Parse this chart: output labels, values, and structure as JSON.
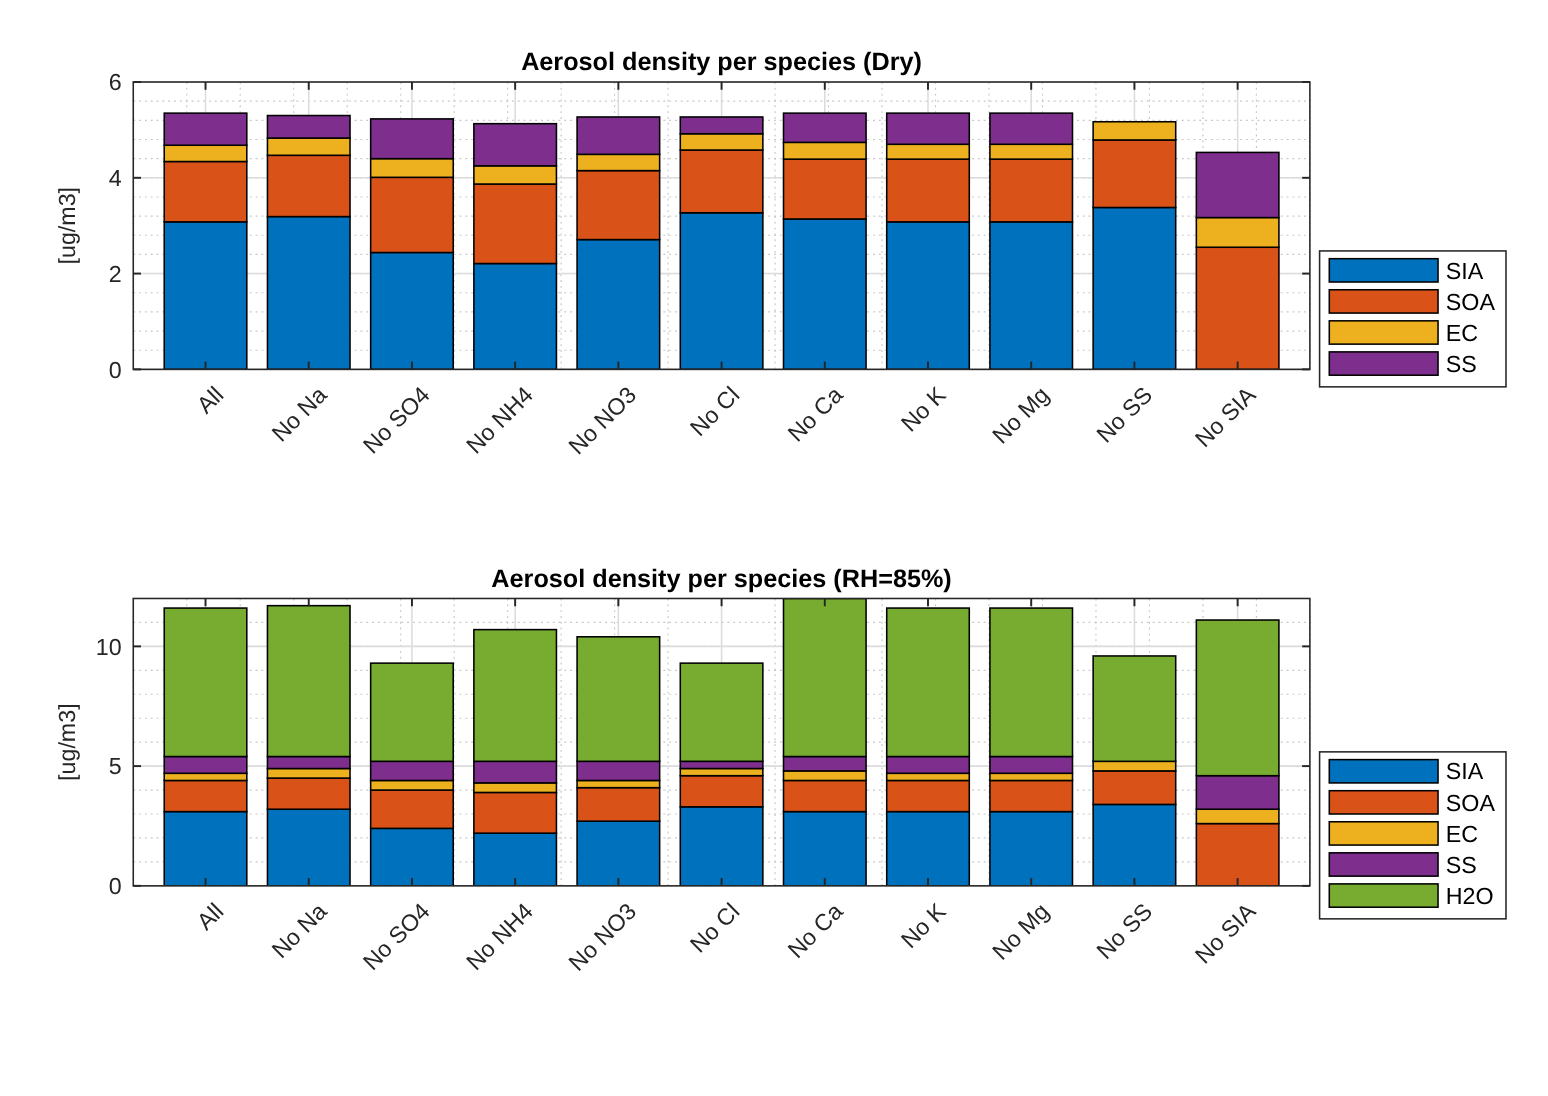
{
  "chart_data": [
    {
      "type": "bar",
      "title": "Aerosol density per species (Dry)",
      "ylabel": "[ug/m3]",
      "stacked": true,
      "grid": true,
      "legend": "right",
      "ylim": [
        0,
        6
      ],
      "yticks": [
        0,
        2,
        4,
        6
      ],
      "categories": [
        "All",
        "No Na",
        "No SO4",
        "No NH4",
        "No NO3",
        "No Cl",
        "No Ca",
        "No K",
        "No Mg",
        "No SS",
        "No SIA"
      ],
      "series": [
        {
          "name": "SIA",
          "color": "#0072bd",
          "values": [
            3.08,
            3.19,
            2.44,
            2.21,
            2.71,
            3.27,
            3.14,
            3.08,
            3.08,
            3.38,
            0
          ]
        },
        {
          "name": "SOA",
          "color": "#d95319",
          "values": [
            1.26,
            1.28,
            1.57,
            1.66,
            1.44,
            1.31,
            1.25,
            1.31,
            1.31,
            1.41,
            2.55
          ]
        },
        {
          "name": "EC",
          "color": "#edb120",
          "values": [
            0.34,
            0.36,
            0.39,
            0.38,
            0.34,
            0.34,
            0.35,
            0.31,
            0.31,
            0.38,
            0.62
          ]
        },
        {
          "name": "SS",
          "color": "#7e2f8e",
          "values": [
            0.67,
            0.47,
            0.83,
            0.88,
            0.78,
            0.35,
            0.61,
            0.65,
            0.65,
            0,
            1.36
          ]
        }
      ]
    },
    {
      "type": "bar",
      "title": "Aerosol density per species (RH=85%)",
      "ylabel": "[ug/m3]",
      "stacked": true,
      "grid": true,
      "legend": "right",
      "ylim": [
        0,
        12
      ],
      "yticks": [
        0,
        5,
        10
      ],
      "categories": [
        "All",
        "No Na",
        "No SO4",
        "No NH4",
        "No NO3",
        "No Cl",
        "No Ca",
        "No K",
        "No Mg",
        "No SS",
        "No SIA"
      ],
      "series": [
        {
          "name": "SIA",
          "color": "#0072bd",
          "values": [
            3.1,
            3.2,
            2.4,
            2.2,
            2.7,
            3.3,
            3.1,
            3.1,
            3.1,
            3.4,
            0
          ]
        },
        {
          "name": "SOA",
          "color": "#d95319",
          "values": [
            1.3,
            1.3,
            1.6,
            1.7,
            1.4,
            1.3,
            1.3,
            1.3,
            1.3,
            1.4,
            2.6
          ]
        },
        {
          "name": "EC",
          "color": "#edb120",
          "values": [
            0.3,
            0.4,
            0.4,
            0.4,
            0.3,
            0.3,
            0.4,
            0.3,
            0.3,
            0.4,
            0.6
          ]
        },
        {
          "name": "SS",
          "color": "#7e2f8e",
          "values": [
            0.7,
            0.5,
            0.8,
            0.9,
            0.8,
            0.3,
            0.6,
            0.7,
            0.7,
            0,
            1.4
          ]
        },
        {
          "name": "H2O",
          "color": "#77ac30",
          "values": [
            6.2,
            6.3,
            4.1,
            5.5,
            5.2,
            4.1,
            6.6,
            6.2,
            6.2,
            4.4,
            6.5
          ]
        }
      ]
    }
  ]
}
